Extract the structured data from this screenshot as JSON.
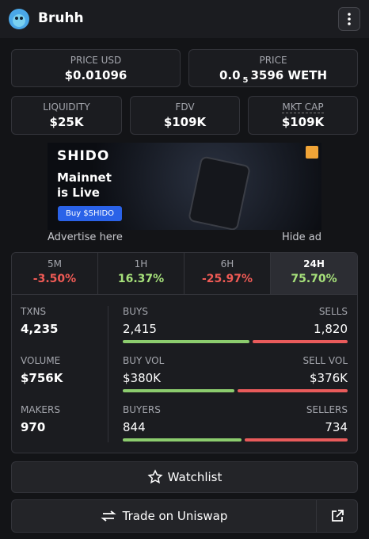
{
  "header": {
    "title": "Bruhh"
  },
  "price_cards": [
    {
      "label": "PRICE USD",
      "value": "$0.01096"
    },
    {
      "label": "PRICE",
      "value_parts": [
        "0.0",
        "5",
        "3596 WETH"
      ]
    }
  ],
  "metric_cards": [
    {
      "label": "LIQUIDITY",
      "value": "$25K"
    },
    {
      "label": "FDV",
      "value": "$109K"
    },
    {
      "label": "MKT CAP",
      "value": "$109K"
    }
  ],
  "ad": {
    "brand": "SHIDO",
    "headline": [
      "Mainnet",
      "is Live"
    ],
    "button": "Buy $SHIDO",
    "advertise": "Advertise here",
    "hide": "Hide ad"
  },
  "timeframes": {
    "selected": 3,
    "items": [
      {
        "label": "5M",
        "change": "-3.50%"
      },
      {
        "label": "1H",
        "change": "16.37%"
      },
      {
        "label": "6H",
        "change": "-25.97%"
      },
      {
        "label": "24H",
        "change": "75.70%"
      }
    ]
  },
  "stats": {
    "summary": [
      {
        "label": "TXNS",
        "value": "4,235"
      },
      {
        "label": "VOLUME",
        "value": "$756K"
      },
      {
        "label": "MAKERS",
        "value": "970"
      }
    ],
    "splits": [
      {
        "left_label": "BUYS",
        "left_value": "2,415",
        "right_label": "SELLS",
        "right_value": "1,820"
      },
      {
        "left_label": "BUY VOL",
        "left_value": "$380K",
        "right_label": "SELL VOL",
        "right_value": "$376K"
      },
      {
        "left_label": "BUYERS",
        "left_value": "844",
        "right_label": "SELLERS",
        "right_value": "734"
      }
    ]
  },
  "actions": {
    "watchlist": "Watchlist",
    "trade": "Trade on Uniswap"
  }
}
